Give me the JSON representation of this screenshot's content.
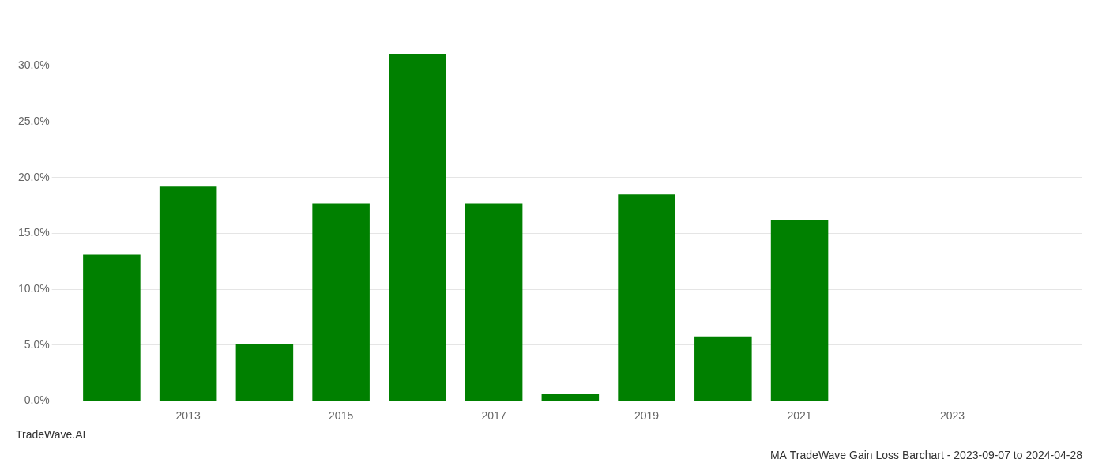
{
  "chart_data": {
    "type": "bar",
    "title": "MA TradeWave Gain Loss Barchart - 2023-09-07 to 2024-04-28",
    "annotations": [
      "TradeWave.AI"
    ],
    "x": [
      2012,
      2013,
      2014,
      2015,
      2016,
      2017,
      2018,
      2019,
      2020,
      2021,
      2022
    ],
    "values": [
      0.131,
      0.192,
      0.051,
      0.177,
      0.311,
      0.177,
      0.006,
      0.185,
      0.058,
      0.162,
      0.0
    ],
    "color": "#008000",
    "xlim": [
      2011.3,
      2024.7
    ],
    "xticks": [
      2013,
      2015,
      2017,
      2019,
      2021,
      2023
    ],
    "ylim": [
      0.0,
      0.345
    ],
    "yticks": [
      {
        "value": 0.0,
        "label": "0.0%"
      },
      {
        "value": 0.05,
        "label": "5.0%"
      },
      {
        "value": 0.1,
        "label": "10.0%"
      },
      {
        "value": 0.15,
        "label": "15.0%"
      },
      {
        "value": 0.2,
        "label": "20.0%"
      },
      {
        "value": 0.25,
        "label": "25.0%"
      },
      {
        "value": 0.3,
        "label": "30.0%"
      }
    ],
    "grid": "y"
  }
}
